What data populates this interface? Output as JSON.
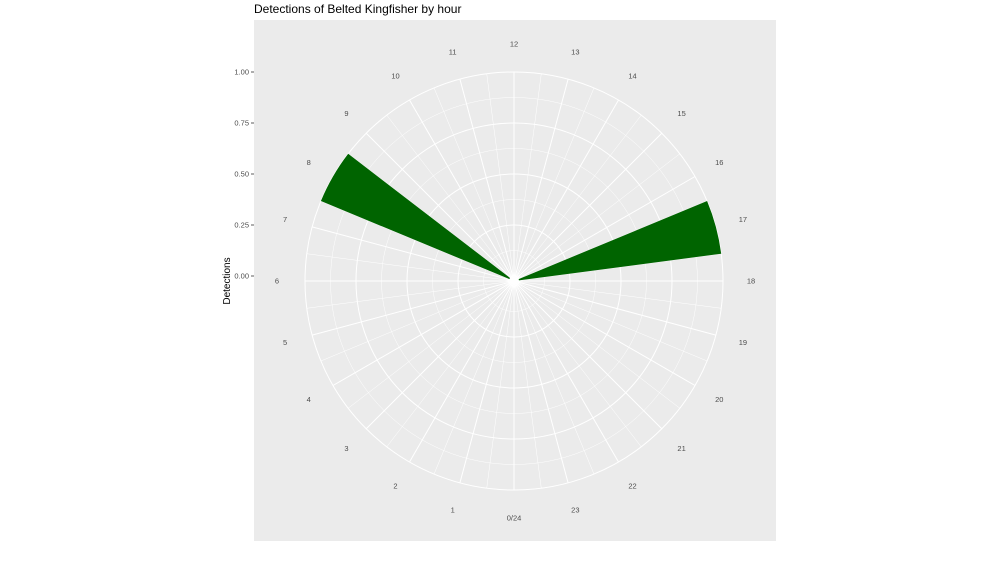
{
  "chart_data": {
    "type": "bar",
    "coord": "polar",
    "title": "Detections of Belted Kingfisher by hour",
    "xlabel": "",
    "ylabel": "Detections",
    "x_ticks": [
      "0/24",
      "1",
      "2",
      "3",
      "4",
      "5",
      "6",
      "7",
      "8",
      "9",
      "10",
      "11",
      "12",
      "13",
      "14",
      "15",
      "16",
      "17",
      "18",
      "19",
      "20",
      "21",
      "22",
      "23"
    ],
    "y_ticks": [
      "0.00",
      "0.25",
      "0.50",
      "0.75",
      "1.00"
    ],
    "ylim": [
      0,
      1
    ],
    "grid": true,
    "bars": [
      {
        "x": 8,
        "value": 1.0
      },
      {
        "x": 17,
        "value": 1.0
      }
    ],
    "bar_color": "#006400",
    "panel_color": "#ebebeb",
    "grid_color": "#ffffff"
  }
}
